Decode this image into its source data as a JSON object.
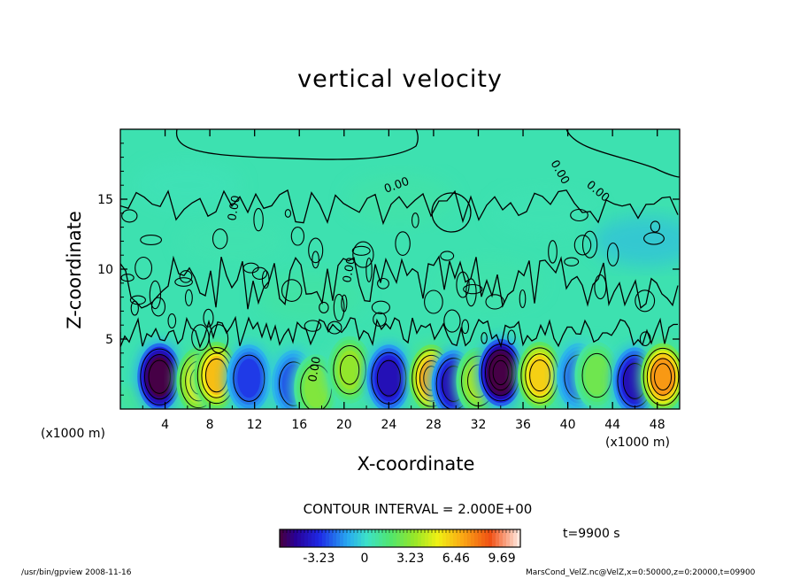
{
  "chart_data": {
    "type": "heatmap",
    "title": "vertical velocity",
    "xlabel": "X-coordinate",
    "ylabel": "Z-coordinate",
    "x_unit": "(x1000 m)",
    "xlim": [
      0,
      50
    ],
    "ylim": [
      0,
      20
    ],
    "xticks": [
      4,
      8,
      12,
      16,
      20,
      24,
      28,
      32,
      36,
      40,
      44,
      48
    ],
    "yticks": [
      5,
      10,
      15
    ],
    "contour_interval": "CONTOUR INTERVAL = 2.000E+00",
    "contour_labels": [
      "0.00",
      "0.00",
      "0.00",
      "0.00",
      "0.00",
      "0.00"
    ],
    "colorbar": {
      "tick_labels": [
        "-3.23",
        "0",
        "3.23",
        "6.46",
        "9.69"
      ],
      "tick_values": [
        -3.23,
        0,
        3.23,
        6.46,
        9.69
      ],
      "range": [
        -6.0,
        11.0
      ]
    },
    "cells": [
      {
        "x": 3.5,
        "z": 2.3,
        "w": -7.5
      },
      {
        "x": 7.0,
        "z": 2.0,
        "w": 6.0
      },
      {
        "x": 8.6,
        "z": 2.4,
        "w": 7.5
      },
      {
        "x": 11.5,
        "z": 2.2,
        "w": -3.5
      },
      {
        "x": 15.5,
        "z": 1.8,
        "w": -3.0
      },
      {
        "x": 17.5,
        "z": 1.5,
        "w": 3.5
      },
      {
        "x": 20.5,
        "z": 2.8,
        "w": 4.0
      },
      {
        "x": 24.0,
        "z": 2.2,
        "w": -5.0
      },
      {
        "x": 27.8,
        "z": 2.2,
        "w": 8.0
      },
      {
        "x": 29.8,
        "z": 1.8,
        "w": -5.0
      },
      {
        "x": 32.0,
        "z": 2.0,
        "w": 4.5
      },
      {
        "x": 34.0,
        "z": 2.6,
        "w": -8.0
      },
      {
        "x": 37.5,
        "z": 2.4,
        "w": 7.0
      },
      {
        "x": 41.0,
        "z": 2.3,
        "w": -3.0
      },
      {
        "x": 42.6,
        "z": 2.4,
        "w": 3.0
      },
      {
        "x": 46.0,
        "z": 2.0,
        "w": -5.0
      },
      {
        "x": 48.5,
        "z": 2.3,
        "w": 8.5
      }
    ]
  },
  "header": {
    "title": "vertical velocity"
  },
  "axes": {
    "xlabel": "X-coordinate",
    "ylabel": "Z-coordinate",
    "xunit_left": "(x1000 m)",
    "xunit_right": "(x1000 m)"
  },
  "contour_interval": "CONTOUR INTERVAL = 2.000E+00",
  "time_label": "t=9900 s",
  "footer": {
    "left": "/usr/bin/gpview   2008-11-16",
    "right": "MarsCond_VelZ.nc@VelZ,x=0:50000,z=0:20000,t=09900"
  },
  "colors": {
    "background_field": "#3de1b0",
    "contour": "#000000"
  }
}
